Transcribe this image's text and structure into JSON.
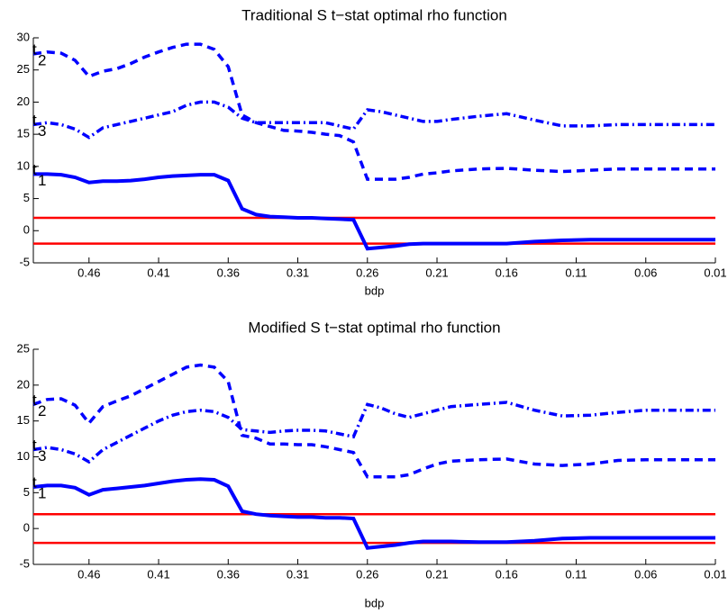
{
  "chart_data": [
    {
      "type": "line",
      "title": "Traditional S  t−stat optimal rho function",
      "xlabel": "bdp",
      "x": [
        0.5,
        0.49,
        0.48,
        0.47,
        0.46,
        0.45,
        0.44,
        0.43,
        0.42,
        0.41,
        0.4,
        0.39,
        0.38,
        0.37,
        0.36,
        0.35,
        0.34,
        0.33,
        0.32,
        0.31,
        0.3,
        0.29,
        0.28,
        0.27,
        0.26,
        0.25,
        0.24,
        0.23,
        0.22,
        0.21,
        0.2,
        0.18,
        0.16,
        0.14,
        0.12,
        0.1,
        0.08,
        0.06,
        0.04,
        0.02,
        0.01
      ],
      "xlim": [
        0.5,
        0.01
      ],
      "xticks": [
        0.46,
        0.41,
        0.36,
        0.31,
        0.26,
        0.21,
        0.16,
        0.11,
        0.06,
        0.01
      ],
      "ylim": [
        -5,
        30
      ],
      "yticks": [
        -5,
        0,
        5,
        10,
        15,
        20,
        25,
        30
      ],
      "hlines": {
        "color": "#ff0000",
        "values": [
          2,
          -2
        ]
      },
      "series": [
        {
          "name": "t",
          "subscript": "1",
          "color": "#0000ff",
          "style": "solid",
          "values": [
            8.8,
            8.8,
            8.7,
            8.3,
            7.5,
            7.7,
            7.7,
            7.8,
            8.0,
            8.3,
            8.5,
            8.6,
            8.7,
            8.7,
            7.8,
            3.4,
            2.5,
            2.2,
            2.1,
            2.0,
            2.0,
            1.9,
            1.8,
            1.7,
            -2.8,
            -2.6,
            -2.4,
            -2.1,
            -2.0,
            -2.0,
            -2.0,
            -2.0,
            -2.0,
            -1.7,
            -1.5,
            -1.4,
            -1.4,
            -1.4,
            -1.4,
            -1.4,
            -1.4
          ]
        },
        {
          "name": "t",
          "subscript": "2",
          "color": "#0000ff",
          "style": "dashed",
          "values": [
            27.5,
            27.8,
            27.6,
            26.5,
            24.0,
            24.8,
            25.2,
            26.0,
            27.0,
            27.8,
            28.5,
            29.0,
            29.0,
            28.2,
            25.5,
            18.0,
            16.8,
            16.2,
            15.6,
            15.5,
            15.3,
            15.0,
            14.8,
            13.8,
            8.0,
            8.0,
            8.0,
            8.3,
            8.8,
            9.0,
            9.3,
            9.6,
            9.7,
            9.4,
            9.2,
            9.4,
            9.6,
            9.6,
            9.6,
            9.6,
            9.6
          ]
        },
        {
          "name": "t",
          "subscript": "3",
          "color": "#0000ff",
          "style": "dashdot",
          "values": [
            16.5,
            16.8,
            16.5,
            15.8,
            14.5,
            16.0,
            16.5,
            17.0,
            17.5,
            18.0,
            18.5,
            19.5,
            20.0,
            20.0,
            19.2,
            17.5,
            16.8,
            16.8,
            16.8,
            16.8,
            16.8,
            16.8,
            16.3,
            15.8,
            18.8,
            18.5,
            18.0,
            17.5,
            17.0,
            17.0,
            17.3,
            17.8,
            18.2,
            17.2,
            16.3,
            16.3,
            16.5,
            16.5,
            16.5,
            16.5,
            16.5
          ]
        }
      ]
    },
    {
      "type": "line",
      "title": "Modified S  t−stat optimal rho function",
      "xlabel": "bdp",
      "x": [
        0.5,
        0.49,
        0.48,
        0.47,
        0.46,
        0.45,
        0.44,
        0.43,
        0.42,
        0.41,
        0.4,
        0.39,
        0.38,
        0.37,
        0.36,
        0.35,
        0.34,
        0.33,
        0.32,
        0.31,
        0.3,
        0.29,
        0.28,
        0.27,
        0.26,
        0.25,
        0.24,
        0.23,
        0.22,
        0.21,
        0.2,
        0.18,
        0.16,
        0.14,
        0.12,
        0.1,
        0.08,
        0.06,
        0.04,
        0.02,
        0.01
      ],
      "xlim": [
        0.5,
        0.01
      ],
      "xticks": [
        0.46,
        0.41,
        0.36,
        0.31,
        0.26,
        0.21,
        0.16,
        0.11,
        0.06,
        0.01
      ],
      "ylim": [
        -5,
        25
      ],
      "yticks": [
        -5,
        0,
        5,
        10,
        15,
        20,
        25
      ],
      "hlines": {
        "color": "#ff0000",
        "values": [
          2,
          -2
        ]
      },
      "series": [
        {
          "name": "t",
          "subscript": "1",
          "color": "#0000ff",
          "style": "solid",
          "values": [
            5.8,
            6.0,
            6.0,
            5.7,
            4.7,
            5.4,
            5.6,
            5.8,
            6.0,
            6.3,
            6.6,
            6.8,
            6.9,
            6.8,
            5.9,
            2.4,
            2.0,
            1.8,
            1.7,
            1.6,
            1.6,
            1.5,
            1.5,
            1.4,
            -2.7,
            -2.5,
            -2.3,
            -2.0,
            -1.8,
            -1.8,
            -1.8,
            -1.9,
            -1.9,
            -1.7,
            -1.4,
            -1.3,
            -1.3,
            -1.3,
            -1.3,
            -1.3,
            -1.3
          ]
        },
        {
          "name": "t",
          "subscript": "2",
          "color": "#0000ff",
          "style": "dashed",
          "values": [
            17.3,
            18.0,
            18.1,
            17.2,
            14.7,
            17.0,
            17.8,
            18.5,
            19.5,
            20.5,
            21.5,
            22.5,
            22.8,
            22.5,
            20.5,
            13.0,
            12.6,
            11.8,
            11.8,
            11.7,
            11.7,
            11.4,
            11.0,
            10.6,
            7.2,
            7.2,
            7.2,
            7.5,
            8.3,
            9.0,
            9.4,
            9.6,
            9.7,
            9.0,
            8.8,
            9.0,
            9.5,
            9.6,
            9.6,
            9.6,
            9.6
          ]
        },
        {
          "name": "t",
          "subscript": "3",
          "color": "#0000ff",
          "style": "dashdot",
          "values": [
            11.0,
            11.3,
            11.0,
            10.4,
            9.3,
            11.0,
            12.0,
            13.0,
            14.0,
            15.0,
            15.8,
            16.3,
            16.5,
            16.3,
            15.5,
            13.8,
            13.6,
            13.4,
            13.6,
            13.7,
            13.7,
            13.6,
            13.2,
            12.8,
            17.3,
            16.8,
            16.0,
            15.5,
            16.0,
            16.5,
            17.0,
            17.3,
            17.6,
            16.5,
            15.7,
            15.8,
            16.2,
            16.5,
            16.5,
            16.5,
            16.5
          ]
        }
      ]
    }
  ]
}
